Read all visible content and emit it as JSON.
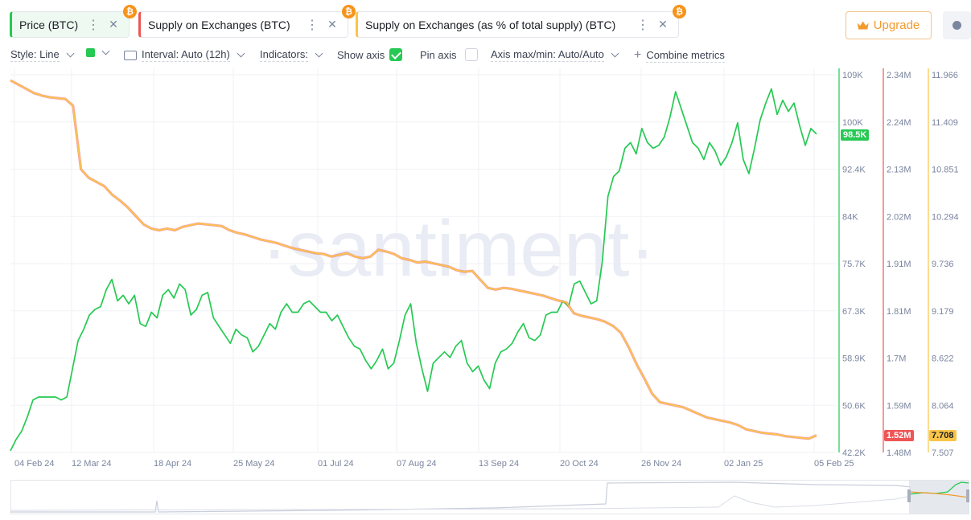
{
  "metric_tabs": [
    {
      "label": "Price (BTC)",
      "color": "#26c953",
      "bg": "#eefaf1"
    },
    {
      "label": "Supply on Exchanges (BTC)",
      "color": "#ee5555",
      "bg": "#ffffff"
    },
    {
      "label": "Supply on Exchanges (as % of total supply) (BTC)",
      "color": "#f9c548",
      "bg": "#ffffff"
    }
  ],
  "upgrade_label": "Upgrade",
  "controls": {
    "style": "Style: Line",
    "interval": "Interval: Auto (12h)",
    "indicators": "Indicators:",
    "show_axis": "Show axis",
    "pin_axis": "Pin axis",
    "axis_maxmin": "Axis max/min: Auto/Auto",
    "combine": "Combine metrics"
  },
  "watermark": "·santiment·",
  "chart_data": {
    "type": "line",
    "x_ticks": [
      "04 Feb 24",
      "12 Mar 24",
      "18 Apr 24",
      "25 May 24",
      "01 Jul 24",
      "07 Aug 24",
      "13 Sep 24",
      "20 Oct 24",
      "26 Nov 24",
      "02 Jan 25",
      "05 Feb 25"
    ],
    "axes": [
      {
        "series": "Price (BTC)",
        "ticks": [
          "109K",
          "100K",
          "92.4K",
          "84K",
          "75.7K",
          "67.3K",
          "58.9K",
          "50.6K",
          "42.2K"
        ],
        "range": [
          42200,
          109000
        ],
        "current": "98.5K",
        "color": "#26c953"
      },
      {
        "series": "Supply on Exchanges (BTC)",
        "ticks": [
          "2.34M",
          "2.24M",
          "2.13M",
          "2.02M",
          "1.91M",
          "1.81M",
          "1.7M",
          "1.59M",
          "1.48M"
        ],
        "range": [
          1480000,
          2340000
        ],
        "current": "1.52M",
        "color": "#ee5555"
      },
      {
        "series": "Supply on Exchanges (as % of total supply) (BTC)",
        "ticks": [
          "11.966",
          "11.409",
          "10.851",
          "10.294",
          "9.736",
          "9.179",
          "8.622",
          "8.064",
          "7.507"
        ],
        "range": [
          7.507,
          11.966
        ],
        "current": "7.708",
        "color": "#f9c548"
      }
    ],
    "series": [
      {
        "name": "Price (BTC)",
        "axis": 0,
        "color": "#26c953",
        "points": [
          [
            0,
            42500
          ],
          [
            1,
            44500
          ],
          [
            2,
            46000
          ],
          [
            3,
            48500
          ],
          [
            4,
            51500
          ],
          [
            5,
            52000
          ],
          [
            6,
            52000
          ],
          [
            7,
            52000
          ],
          [
            8,
            52000
          ],
          [
            9,
            51500
          ],
          [
            10,
            52000
          ],
          [
            11,
            57000
          ],
          [
            12,
            62000
          ],
          [
            13,
            64000
          ],
          [
            14,
            66500
          ],
          [
            15,
            67500
          ],
          [
            16,
            68000
          ],
          [
            17,
            71000
          ],
          [
            18,
            72800
          ],
          [
            19,
            69000
          ],
          [
            20,
            70000
          ],
          [
            21,
            68500
          ],
          [
            22,
            70000
          ],
          [
            23,
            65000
          ],
          [
            24,
            64500
          ],
          [
            25,
            67000
          ],
          [
            26,
            66000
          ],
          [
            27,
            70000
          ],
          [
            28,
            71000
          ],
          [
            29,
            69500
          ],
          [
            30,
            72000
          ],
          [
            31,
            71000
          ],
          [
            32,
            66500
          ],
          [
            33,
            67500
          ],
          [
            34,
            70000
          ],
          [
            35,
            70500
          ],
          [
            36,
            66000
          ],
          [
            37,
            64500
          ],
          [
            38,
            63000
          ],
          [
            39,
            61500
          ],
          [
            40,
            64000
          ],
          [
            41,
            63000
          ],
          [
            42,
            62500
          ],
          [
            43,
            60000
          ],
          [
            44,
            61000
          ],
          [
            45,
            63000
          ],
          [
            46,
            65000
          ],
          [
            47,
            64000
          ],
          [
            48,
            67000
          ],
          [
            49,
            68500
          ],
          [
            50,
            67000
          ],
          [
            51,
            67000
          ],
          [
            52,
            68500
          ],
          [
            53,
            69000
          ],
          [
            54,
            68000
          ],
          [
            55,
            67000
          ],
          [
            56,
            67000
          ],
          [
            57,
            65500
          ],
          [
            58,
            66500
          ],
          [
            59,
            64500
          ],
          [
            60,
            62500
          ],
          [
            61,
            61000
          ],
          [
            62,
            60500
          ],
          [
            63,
            58500
          ],
          [
            64,
            57000
          ],
          [
            65,
            58500
          ],
          [
            66,
            60500
          ],
          [
            67,
            57000
          ],
          [
            68,
            58000
          ],
          [
            69,
            62000
          ],
          [
            70,
            66500
          ],
          [
            71,
            68500
          ],
          [
            72,
            61500
          ],
          [
            73,
            57000
          ],
          [
            74,
            53000
          ],
          [
            75,
            58000
          ],
          [
            76,
            59000
          ],
          [
            77,
            60000
          ],
          [
            78,
            59000
          ],
          [
            79,
            61000
          ],
          [
            80,
            62000
          ],
          [
            81,
            58000
          ],
          [
            82,
            56500
          ],
          [
            83,
            57500
          ],
          [
            84,
            55000
          ],
          [
            85,
            53500
          ],
          [
            86,
            58000
          ],
          [
            87,
            60000
          ],
          [
            88,
            60500
          ],
          [
            89,
            61500
          ],
          [
            90,
            63500
          ],
          [
            91,
            65000
          ],
          [
            92,
            62500
          ],
          [
            93,
            62000
          ],
          [
            94,
            63000
          ],
          [
            95,
            66500
          ],
          [
            96,
            67000
          ],
          [
            97,
            67000
          ],
          [
            98,
            69000
          ],
          [
            99,
            68000
          ],
          [
            100,
            72000
          ],
          [
            101,
            72500
          ],
          [
            102,
            70500
          ],
          [
            103,
            68500
          ],
          [
            104,
            69000
          ],
          [
            105,
            76000
          ],
          [
            106,
            87500
          ],
          [
            107,
            91000
          ],
          [
            108,
            92000
          ],
          [
            109,
            96000
          ],
          [
            110,
            97000
          ],
          [
            111,
            95000
          ],
          [
            112,
            99500
          ],
          [
            113,
            97000
          ],
          [
            114,
            96000
          ],
          [
            115,
            96500
          ],
          [
            116,
            98000
          ],
          [
            117,
            101500
          ],
          [
            118,
            106000
          ],
          [
            119,
            103000
          ],
          [
            120,
            100000
          ],
          [
            121,
            97000
          ],
          [
            122,
            96000
          ],
          [
            123,
            94000
          ],
          [
            124,
            97000
          ],
          [
            125,
            95500
          ],
          [
            126,
            93000
          ],
          [
            127,
            94500
          ],
          [
            128,
            97000
          ],
          [
            129,
            100500
          ],
          [
            130,
            94000
          ],
          [
            131,
            91500
          ],
          [
            132,
            96000
          ],
          [
            133,
            101000
          ],
          [
            134,
            104000
          ],
          [
            135,
            106500
          ],
          [
            136,
            102000
          ],
          [
            137,
            104500
          ],
          [
            138,
            102500
          ],
          [
            139,
            104000
          ],
          [
            140,
            100000
          ],
          [
            141,
            96500
          ],
          [
            142,
            99500
          ],
          [
            143,
            98500
          ]
        ]
      },
      {
        "name": "Supply on Exchanges (as % of total supply) (BTC)",
        "axis": 2,
        "color": "#f9c548",
        "points": [
          [
            0,
            11.9
          ],
          [
            1,
            11.85
          ],
          [
            2,
            11.8
          ],
          [
            3,
            11.75
          ],
          [
            4,
            11.72
          ],
          [
            5,
            11.7
          ],
          [
            6,
            11.69
          ],
          [
            7,
            11.68
          ],
          [
            8,
            11.6
          ],
          [
            9,
            10.85
          ],
          [
            10,
            10.75
          ],
          [
            11,
            10.7
          ],
          [
            12,
            10.65
          ],
          [
            13,
            10.55
          ],
          [
            14,
            10.48
          ],
          [
            15,
            10.4
          ],
          [
            16,
            10.3
          ],
          [
            17,
            10.2
          ],
          [
            18,
            10.15
          ],
          [
            19,
            10.13
          ],
          [
            20,
            10.15
          ],
          [
            21,
            10.13
          ],
          [
            22,
            10.17
          ],
          [
            23,
            10.19
          ],
          [
            24,
            10.21
          ],
          [
            25,
            10.2
          ],
          [
            26,
            10.19
          ],
          [
            27,
            10.18
          ],
          [
            28,
            10.13
          ],
          [
            29,
            10.1
          ],
          [
            30,
            10.08
          ],
          [
            31,
            10.05
          ],
          [
            32,
            10.02
          ],
          [
            33,
            10.0
          ],
          [
            34,
            9.98
          ],
          [
            35,
            9.95
          ],
          [
            36,
            9.92
          ],
          [
            37,
            9.9
          ],
          [
            38,
            9.88
          ],
          [
            39,
            9.86
          ],
          [
            40,
            9.85
          ],
          [
            41,
            9.82
          ],
          [
            42,
            9.84
          ],
          [
            43,
            9.86
          ],
          [
            44,
            9.82
          ],
          [
            45,
            9.8
          ],
          [
            46,
            9.82
          ],
          [
            47,
            9.9
          ],
          [
            48,
            9.88
          ],
          [
            49,
            9.85
          ],
          [
            50,
            9.8
          ],
          [
            51,
            9.78
          ],
          [
            52,
            9.75
          ],
          [
            53,
            9.76
          ],
          [
            54,
            9.74
          ],
          [
            55,
            9.72
          ],
          [
            56,
            9.7
          ],
          [
            57,
            9.66
          ],
          [
            58,
            9.64
          ],
          [
            59,
            9.65
          ],
          [
            60,
            9.55
          ],
          [
            61,
            9.45
          ],
          [
            62,
            9.43
          ],
          [
            63,
            9.45
          ],
          [
            64,
            9.44
          ],
          [
            65,
            9.42
          ],
          [
            66,
            9.4
          ],
          [
            67,
            9.38
          ],
          [
            68,
            9.36
          ],
          [
            69,
            9.33
          ],
          [
            70,
            9.3
          ],
          [
            71,
            9.28
          ],
          [
            72,
            9.15
          ],
          [
            73,
            9.12
          ],
          [
            74,
            9.1
          ],
          [
            75,
            9.08
          ],
          [
            76,
            9.05
          ],
          [
            77,
            9.0
          ],
          [
            78,
            8.92
          ],
          [
            79,
            8.75
          ],
          [
            80,
            8.55
          ],
          [
            81,
            8.38
          ],
          [
            82,
            8.2
          ],
          [
            83,
            8.1
          ],
          [
            84,
            8.08
          ],
          [
            85,
            8.06
          ],
          [
            86,
            8.04
          ],
          [
            87,
            8.0
          ],
          [
            88,
            7.96
          ],
          [
            89,
            7.92
          ],
          [
            90,
            7.9
          ],
          [
            91,
            7.88
          ],
          [
            92,
            7.86
          ],
          [
            93,
            7.83
          ],
          [
            94,
            7.78
          ],
          [
            95,
            7.76
          ],
          [
            96,
            7.74
          ],
          [
            97,
            7.73
          ],
          [
            98,
            7.72
          ],
          [
            99,
            7.7
          ],
          [
            100,
            7.69
          ],
          [
            101,
            7.68
          ],
          [
            102,
            7.67
          ],
          [
            103,
            7.71
          ]
        ]
      }
    ]
  }
}
